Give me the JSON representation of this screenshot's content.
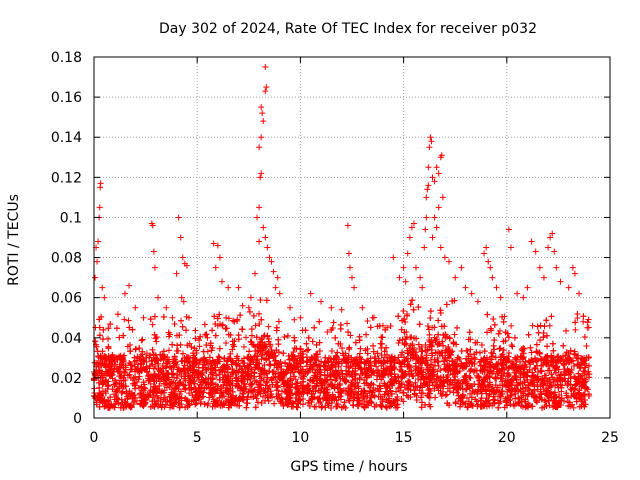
{
  "chart_data": {
    "type": "scatter",
    "title": "Day 302 of 2024, Rate Of TEC Index for receiver p032",
    "xlabel": "GPS time / hours",
    "ylabel": "ROTI / TECUs",
    "xlim": [
      0,
      25
    ],
    "ylim": [
      0,
      0.18
    ],
    "xticks": [
      0,
      5,
      10,
      15,
      20,
      25
    ],
    "xtick_labels": [
      "0",
      "5",
      "10",
      "15",
      "20",
      "25"
    ],
    "yticks": [
      0,
      0.02,
      0.04,
      0.06,
      0.08,
      0.1,
      0.12,
      0.14,
      0.16,
      0.18
    ],
    "ytick_labels": [
      "0",
      "0.02",
      "0.04",
      "0.06",
      "0.08",
      "0.1",
      "0.12",
      "0.14",
      "0.16",
      "0.18"
    ],
    "grid": true,
    "marker": "+",
    "marker_color": "#ff0000",
    "data_range_x": [
      0,
      24
    ],
    "background_band": {
      "description": "dense cloud of ROTI points",
      "y_low": 0.005,
      "y_high": 0.03
    },
    "series": [
      {
        "name": "ROTI",
        "points": [
          [
            0.1,
            0.085
          ],
          [
            0.2,
            0.088
          ],
          [
            0.25,
            0.1
          ],
          [
            0.28,
            0.105
          ],
          [
            0.3,
            0.115
          ],
          [
            0.32,
            0.117
          ],
          [
            0.15,
            0.078
          ],
          [
            0.05,
            0.07
          ],
          [
            0.4,
            0.065
          ],
          [
            0.5,
            0.06
          ],
          [
            1.5,
            0.062
          ],
          [
            1.7,
            0.066
          ],
          [
            2.0,
            0.055
          ],
          [
            2.4,
            0.05
          ],
          [
            2.8,
            0.097
          ],
          [
            2.85,
            0.096
          ],
          [
            2.9,
            0.083
          ],
          [
            2.95,
            0.075
          ],
          [
            3.1,
            0.06
          ],
          [
            3.5,
            0.055
          ],
          [
            4.1,
            0.1
          ],
          [
            4.2,
            0.09
          ],
          [
            4.3,
            0.08
          ],
          [
            4.4,
            0.077
          ],
          [
            4.5,
            0.076
          ],
          [
            4.0,
            0.072
          ],
          [
            4.25,
            0.06
          ],
          [
            4.35,
            0.058
          ],
          [
            3.8,
            0.05
          ],
          [
            4.6,
            0.05
          ],
          [
            5.5,
            0.04
          ],
          [
            6.0,
            0.046
          ],
          [
            6.4,
            0.05
          ],
          [
            6.8,
            0.048
          ],
          [
            7.0,
            0.065
          ],
          [
            7.2,
            0.056
          ],
          [
            7.5,
            0.055
          ],
          [
            5.8,
            0.087
          ],
          [
            6.0,
            0.086
          ],
          [
            6.1,
            0.08
          ],
          [
            5.9,
            0.075
          ],
          [
            6.2,
            0.068
          ],
          [
            6.5,
            0.065
          ],
          [
            7.9,
            0.1
          ],
          [
            8.0,
            0.105
          ],
          [
            8.05,
            0.12
          ],
          [
            8.1,
            0.122
          ],
          [
            8.0,
            0.135
          ],
          [
            8.1,
            0.14
          ],
          [
            8.2,
            0.148
          ],
          [
            8.15,
            0.152
          ],
          [
            8.1,
            0.155
          ],
          [
            8.3,
            0.163
          ],
          [
            8.35,
            0.165
          ],
          [
            8.3,
            0.175
          ],
          [
            8.2,
            0.095
          ],
          [
            8.3,
            0.09
          ],
          [
            8.4,
            0.085
          ],
          [
            8.5,
            0.08
          ],
          [
            8.6,
            0.078
          ],
          [
            8.7,
            0.073
          ],
          [
            8.8,
            0.065
          ],
          [
            9.0,
            0.062
          ],
          [
            8.9,
            0.07
          ],
          [
            8.0,
            0.088
          ],
          [
            7.8,
            0.072
          ],
          [
            7.6,
            0.06
          ],
          [
            9.5,
            0.055
          ],
          [
            10.0,
            0.05
          ],
          [
            10.5,
            0.062
          ],
          [
            11.0,
            0.058
          ],
          [
            11.5,
            0.055
          ],
          [
            12.0,
            0.054
          ],
          [
            12.3,
            0.096
          ],
          [
            12.35,
            0.082
          ],
          [
            12.4,
            0.075
          ],
          [
            12.5,
            0.07
          ],
          [
            12.6,
            0.065
          ],
          [
            13.0,
            0.055
          ],
          [
            13.5,
            0.05
          ],
          [
            14.0,
            0.046
          ],
          [
            14.2,
            0.045
          ],
          [
            14.5,
            0.08
          ],
          [
            14.8,
            0.07
          ],
          [
            15.0,
            0.075
          ],
          [
            15.1,
            0.068
          ],
          [
            15.2,
            0.082
          ],
          [
            15.3,
            0.09
          ],
          [
            15.4,
            0.095
          ],
          [
            15.5,
            0.097
          ],
          [
            15.6,
            0.075
          ],
          [
            15.8,
            0.07
          ],
          [
            15.9,
            0.065
          ],
          [
            16.0,
            0.085
          ],
          [
            16.05,
            0.094
          ],
          [
            16.1,
            0.1
          ],
          [
            16.1,
            0.11
          ],
          [
            16.15,
            0.114
          ],
          [
            16.2,
            0.116
          ],
          [
            16.2,
            0.125
          ],
          [
            16.25,
            0.135
          ],
          [
            16.3,
            0.14
          ],
          [
            16.35,
            0.138
          ],
          [
            16.4,
            0.12
          ],
          [
            16.5,
            0.118
          ],
          [
            16.6,
            0.125
          ],
          [
            16.7,
            0.122
          ],
          [
            16.8,
            0.13
          ],
          [
            16.85,
            0.131
          ],
          [
            16.9,
            0.11
          ],
          [
            16.7,
            0.105
          ],
          [
            16.5,
            0.1
          ],
          [
            16.6,
            0.095
          ],
          [
            16.4,
            0.09
          ],
          [
            16.8,
            0.085
          ],
          [
            17.0,
            0.08
          ],
          [
            17.2,
            0.078
          ],
          [
            17.5,
            0.07
          ],
          [
            17.8,
            0.075
          ],
          [
            18.0,
            0.065
          ],
          [
            18.3,
            0.062
          ],
          [
            18.6,
            0.058
          ],
          [
            18.9,
            0.082
          ],
          [
            19.0,
            0.085
          ],
          [
            19.1,
            0.078
          ],
          [
            19.2,
            0.075
          ],
          [
            19.3,
            0.07
          ],
          [
            19.5,
            0.065
          ],
          [
            19.7,
            0.06
          ],
          [
            20.1,
            0.094
          ],
          [
            20.2,
            0.085
          ],
          [
            20.5,
            0.062
          ],
          [
            20.8,
            0.06
          ],
          [
            21.0,
            0.065
          ],
          [
            21.2,
            0.088
          ],
          [
            21.4,
            0.083
          ],
          [
            21.6,
            0.075
          ],
          [
            21.8,
            0.07
          ],
          [
            22.0,
            0.085
          ],
          [
            22.1,
            0.09
          ],
          [
            22.2,
            0.092
          ],
          [
            22.3,
            0.083
          ],
          [
            22.4,
            0.075
          ],
          [
            22.6,
            0.068
          ],
          [
            23.0,
            0.065
          ],
          [
            23.2,
            0.075
          ],
          [
            23.3,
            0.072
          ],
          [
            23.5,
            0.062
          ],
          [
            23.7,
            0.048
          ],
          [
            23.9,
            0.045
          ]
        ]
      }
    ]
  }
}
